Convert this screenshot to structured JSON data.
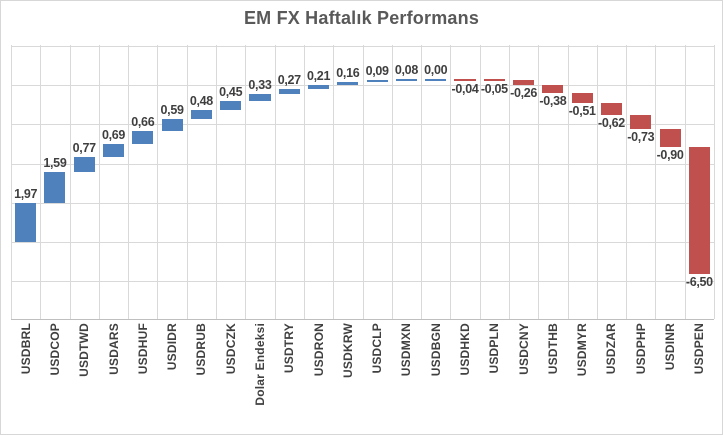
{
  "chart_data": {
    "type": "bar",
    "subtype": "waterfall-cascade",
    "title": "EM FX Haftalık Performans",
    "categories": [
      "USDBRL",
      "USDCOP",
      "USDTWD",
      "USDARS",
      "USDHUF",
      "USDIDR",
      "USDRUB",
      "USDCZK",
      "Dolar Endeksi",
      "USDTRY",
      "USDRON",
      "USDKRW",
      "USDCLP",
      "USDMXN",
      "USDBGN",
      "USDHKD",
      "USDPLN",
      "USDCNY",
      "USDTHB",
      "USDMYR",
      "USDZAR",
      "USDPHP",
      "USDINR",
      "USDPEN"
    ],
    "values": [
      1.97,
      1.59,
      0.77,
      0.69,
      0.66,
      0.59,
      0.48,
      0.45,
      0.33,
      0.27,
      0.21,
      0.16,
      0.09,
      0.08,
      0.0,
      -0.04,
      -0.05,
      -0.26,
      -0.38,
      -0.51,
      -0.62,
      -0.73,
      -0.9,
      -6.5
    ],
    "value_labels": [
      "1,97",
      "1,59",
      "0,77",
      "0,69",
      "0,66",
      "0,59",
      "0,48",
      "0,45",
      "0,33",
      "0,27",
      "0,21",
      "0,16",
      "0,09",
      "0,08",
      "0,00",
      "-0,04",
      "-0,05",
      "-0,26",
      "-0,38",
      "-0,51",
      "-0,62",
      "-0,73",
      "-0,90",
      "-6,50"
    ],
    "xlabel": "",
    "ylabel": "",
    "y_axis_tick_labels_visible": false,
    "gridline_step": 2,
    "ylim": [
      -3.95,
      10.35
    ],
    "grid": true,
    "legend": false
  },
  "colors": {
    "positive_bar": "#4F81BD",
    "negative_bar": "#C0504D",
    "gridline": "#D9D9D9",
    "axis_line": "#BFBFBF",
    "title_text": "#595959",
    "value_label_text": "#3F3F3F",
    "tick_label_text": "#404040",
    "chart_border": "#D7D7D7",
    "background": "#FFFFFF"
  }
}
